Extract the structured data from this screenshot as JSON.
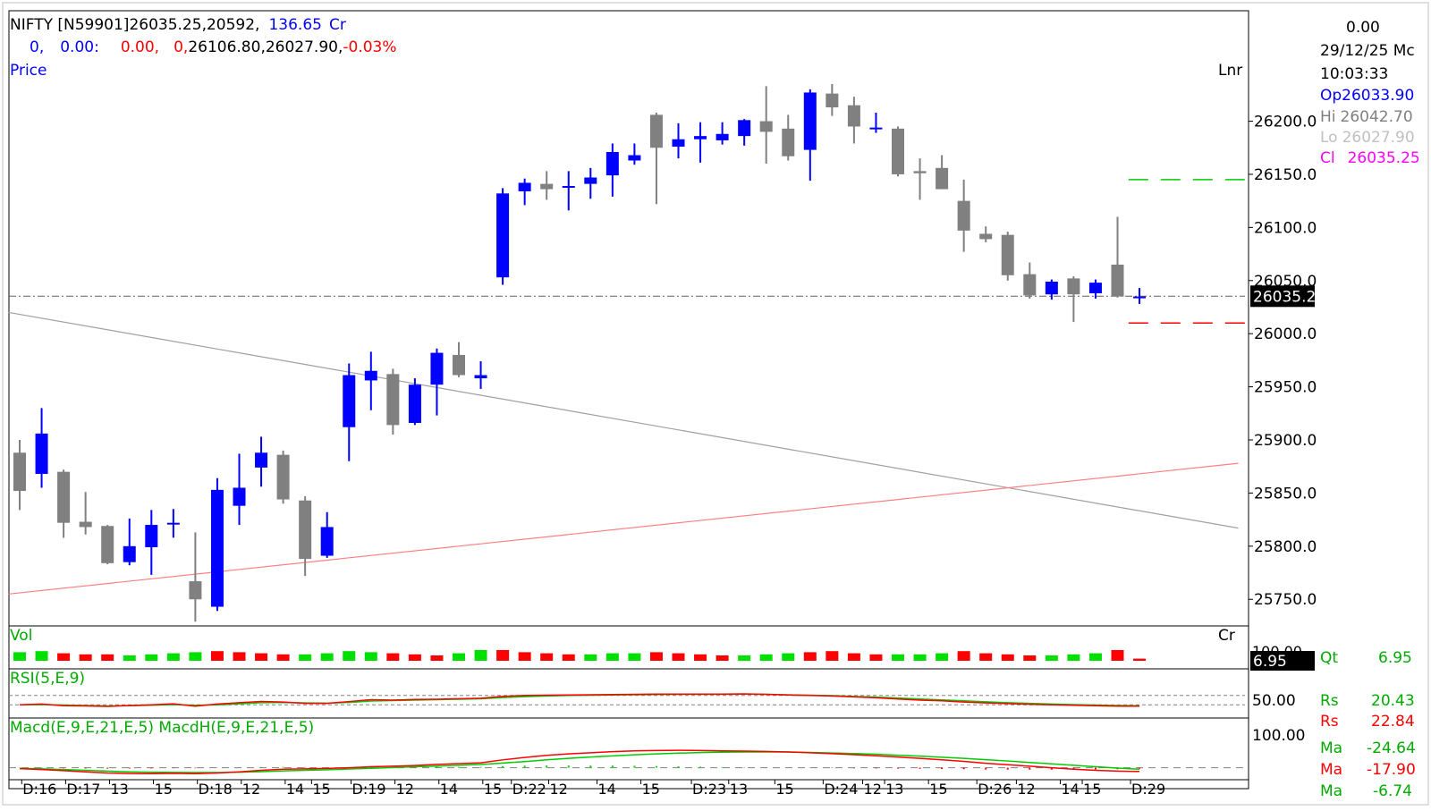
{
  "header": {
    "symbol": "NIFTY [N59901]",
    "price_volume": "26035.25,20592,",
    "turnover_value": "136.65",
    "turnover_unit": "Cr",
    "row2_a": "0,",
    "row2_b": "0.00:",
    "row2_c": "0.00,",
    "row2_d": "0,",
    "row2_e": "26106.80,26027.90,",
    "row2_change": "-0.03%",
    "pane_label": "Price",
    "scale_mode": "Lnr"
  },
  "info_panel": {
    "top_value": "0.00",
    "date": "29/12/25 Mc",
    "time": "10:03:33",
    "op_label": "Op",
    "op_value": "26033.90",
    "hi_label": "Hi",
    "hi_value": "26042.70",
    "lo_label": "Lo",
    "lo_value": "26027.90",
    "cl_label": "Cl",
    "cl_value": "26035.25",
    "qt_label": "Qt",
    "qt_value": "6.95",
    "rs1_label": "Rs",
    "rs1_value": "20.43",
    "rs2_label": "Rs",
    "rs2_value": "22.84",
    "ma1_label": "Ma",
    "ma1_value": "-24.64",
    "ma2_label": "Ma",
    "ma2_value": "-17.90",
    "ma3_label": "Ma",
    "ma3_value": "-6.74"
  },
  "panes": {
    "volume_label": "Vol",
    "volume_unit": "Cr",
    "volume_axis_partial": "100.00",
    "volume_current": "6.95",
    "rsi_label": "RSI(5,E,9)",
    "rsi_tick": "50.00",
    "macd_label": "Macd(E,9,E,21,E,5)  MacdH(E,9,E,21,E,5)",
    "macd_tick": "100.00"
  },
  "colors": {
    "up": "#0000ff",
    "down": "#808080",
    "vol_up": "#00e000",
    "vol_down": "#ff0000",
    "rsi": "#ff0000",
    "rsi_signal": "#00cc00",
    "macd": "#ff0000",
    "macd_signal": "#00cc00",
    "resistance_line": "#00cc00",
    "support_line": "#ff0000",
    "trend_up": "#ff8080",
    "trend_down": "#a0a0a0"
  },
  "chart_data": {
    "type": "candlestick",
    "interval": "hourly",
    "y_ticks": [
      "25750.0",
      "25800.0",
      "25850.0",
      "25900.0",
      "25950.0",
      "26000.0",
      "26050.0",
      "26100.0",
      "26150.0",
      "26200.0"
    ],
    "ylim": [
      25730,
      26240
    ],
    "current_price_label": "26035.2",
    "current_price": 26035.25,
    "resistance_level": 26145,
    "support_level": 26010,
    "trendline_falling": {
      "from": [
        -0.5,
        26020
      ],
      "to": [
        55.5,
        25817
      ]
    },
    "trendline_rising": {
      "from": [
        -0.5,
        25755
      ],
      "to": [
        55.5,
        25878
      ]
    },
    "x_tick_labels": [
      {
        "i": 0.5,
        "label": "D:16"
      },
      {
        "i": 2.5,
        "label": "D:17"
      },
      {
        "i": 4.5,
        "label": "13"
      },
      {
        "i": 6.5,
        "label": "15"
      },
      {
        "i": 8.5,
        "label": "D:18"
      },
      {
        "i": 10.5,
        "label": "12"
      },
      {
        "i": 12.5,
        "label": "14"
      },
      {
        "i": 13.7,
        "label": "15"
      },
      {
        "i": 15.5,
        "label": "D:19"
      },
      {
        "i": 17.5,
        "label": "12"
      },
      {
        "i": 19.5,
        "label": "14"
      },
      {
        "i": 21.5,
        "label": "15"
      },
      {
        "i": 22.8,
        "label": "D:22"
      },
      {
        "i": 24.5,
        "label": "12"
      },
      {
        "i": 26.7,
        "label": "14"
      },
      {
        "i": 28.7,
        "label": "15"
      },
      {
        "i": 31,
        "label": "D:23"
      },
      {
        "i": 32.7,
        "label": "13"
      },
      {
        "i": 34.8,
        "label": "15"
      },
      {
        "i": 37,
        "label": "D:24"
      },
      {
        "i": 38.8,
        "label": "12"
      },
      {
        "i": 39.8,
        "label": "13"
      },
      {
        "i": 41.8,
        "label": "15"
      },
      {
        "i": 44,
        "label": "D:26"
      },
      {
        "i": 45.8,
        "label": "12"
      },
      {
        "i": 47.8,
        "label": "14"
      },
      {
        "i": 48.8,
        "label": "15"
      },
      {
        "i": 51,
        "label": "D:29"
      }
    ],
    "candles": [
      {
        "o": 25888,
        "h": 25900,
        "l": 25834,
        "c": 25852
      },
      {
        "o": 25868,
        "h": 25930,
        "l": 25855,
        "c": 25906
      },
      {
        "o": 25870,
        "h": 25872,
        "l": 25808,
        "c": 25822
      },
      {
        "o": 25823,
        "h": 25851,
        "l": 25811,
        "c": 25818
      },
      {
        "o": 25819,
        "h": 25820,
        "l": 25783,
        "c": 25784
      },
      {
        "o": 25785,
        "h": 25826,
        "l": 25782,
        "c": 25800
      },
      {
        "o": 25799,
        "h": 25834,
        "l": 25773,
        "c": 25820
      },
      {
        "o": 25821,
        "h": 25835,
        "l": 25808,
        "c": 25822
      },
      {
        "o": 25767,
        "h": 25813,
        "l": 25729,
        "c": 25750
      },
      {
        "o": 25743,
        "h": 25864,
        "l": 25739,
        "c": 25853
      },
      {
        "o": 25838,
        "h": 25887,
        "l": 25820,
        "c": 25855
      },
      {
        "o": 25874,
        "h": 25903,
        "l": 25856,
        "c": 25888
      },
      {
        "o": 25886,
        "h": 25890,
        "l": 25840,
        "c": 25844
      },
      {
        "o": 25843,
        "h": 25847,
        "l": 25772,
        "c": 25788
      },
      {
        "o": 25791,
        "h": 25832,
        "l": 25789,
        "c": 25818
      },
      {
        "o": 25912,
        "h": 25972,
        "l": 25880,
        "c": 25961
      },
      {
        "o": 25956,
        "h": 25983,
        "l": 25928,
        "c": 25965
      },
      {
        "o": 25962,
        "h": 25967,
        "l": 25905,
        "c": 25914
      },
      {
        "o": 25916,
        "h": 25958,
        "l": 25914,
        "c": 25952
      },
      {
        "o": 25952,
        "h": 25986,
        "l": 25923,
        "c": 25982
      },
      {
        "o": 25980,
        "h": 25992,
        "l": 25959,
        "c": 25961
      },
      {
        "o": 25958,
        "h": 25974,
        "l": 25948,
        "c": 25961
      },
      {
        "o": 26053,
        "h": 26137,
        "l": 26046,
        "c": 26132
      },
      {
        "o": 26134,
        "h": 26146,
        "l": 26121,
        "c": 26142
      },
      {
        "o": 26141,
        "h": 26153,
        "l": 26126,
        "c": 26136
      },
      {
        "o": 26138,
        "h": 26153,
        "l": 26116,
        "c": 26139
      },
      {
        "o": 26141,
        "h": 26156,
        "l": 26127,
        "c": 26147
      },
      {
        "o": 26149,
        "h": 26179,
        "l": 26129,
        "c": 26171
      },
      {
        "o": 26163,
        "h": 26179,
        "l": 26159,
        "c": 26168
      },
      {
        "o": 26206,
        "h": 26208,
        "l": 26122,
        "c": 26175
      },
      {
        "o": 26176,
        "h": 26198,
        "l": 26165,
        "c": 26183
      },
      {
        "o": 26183,
        "h": 26199,
        "l": 26161,
        "c": 26186
      },
      {
        "o": 26182,
        "h": 26199,
        "l": 26178,
        "c": 26188
      },
      {
        "o": 26186,
        "h": 26202,
        "l": 26177,
        "c": 26201
      },
      {
        "o": 26200,
        "h": 26233,
        "l": 26160,
        "c": 26190
      },
      {
        "o": 26193,
        "h": 26206,
        "l": 26163,
        "c": 26167
      },
      {
        "o": 26173,
        "h": 26230,
        "l": 26144,
        "c": 26227
      },
      {
        "o": 26226,
        "h": 26235,
        "l": 26205,
        "c": 26213
      },
      {
        "o": 26215,
        "h": 26223,
        "l": 26179,
        "c": 26195
      },
      {
        "o": 26193,
        "h": 26208,
        "l": 26189,
        "c": 26194
      },
      {
        "o": 26193,
        "h": 26195,
        "l": 26148,
        "c": 26150
      },
      {
        "o": 26153,
        "h": 26165,
        "l": 26126,
        "c": 26151
      },
      {
        "o": 26156,
        "h": 26168,
        "l": 26136,
        "c": 26136
      },
      {
        "o": 26125,
        "h": 26145,
        "l": 26077,
        "c": 26097
      },
      {
        "o": 26094,
        "h": 26101,
        "l": 26086,
        "c": 26089
      },
      {
        "o": 26093,
        "h": 26096,
        "l": 26050,
        "c": 26055
      },
      {
        "o": 26056,
        "h": 26067,
        "l": 26033,
        "c": 26036
      },
      {
        "o": 26037,
        "h": 26051,
        "l": 26032,
        "c": 26049
      },
      {
        "o": 26052,
        "h": 26054,
        "l": 26011,
        "c": 26037
      },
      {
        "o": 26038,
        "h": 26051,
        "l": 26033,
        "c": 26048
      },
      {
        "o": 26065,
        "h": 26110,
        "l": 26034,
        "c": 26035
      },
      {
        "o": 26034,
        "h": 26043,
        "l": 26028,
        "c": 26035
      }
    ],
    "volume": {
      "values": [
        8,
        9,
        7,
        6,
        6,
        5,
        6,
        7,
        8,
        9,
        8,
        7,
        6,
        6,
        7,
        9,
        8,
        7,
        6,
        5,
        7,
        10,
        10,
        8,
        7,
        6,
        6,
        7,
        7,
        8,
        7,
        6,
        5,
        5,
        6,
        7,
        8,
        9,
        7,
        6,
        6,
        6,
        7,
        9,
        7,
        6,
        5,
        5,
        6,
        7,
        10,
        2
      ],
      "up": [
        true,
        true,
        false,
        false,
        false,
        true,
        true,
        true,
        true,
        false,
        false,
        false,
        false,
        true,
        true,
        true,
        true,
        false,
        false,
        false,
        true,
        true,
        false,
        false,
        false,
        false,
        true,
        true,
        true,
        false,
        false,
        false,
        false,
        true,
        true,
        true,
        false,
        false,
        false,
        false,
        true,
        true,
        true,
        false,
        false,
        false,
        false,
        true,
        true,
        true,
        false,
        false
      ]
    },
    "rsi": {
      "ylim": [
        0,
        100
      ],
      "tick": 50,
      "values": [
        30,
        33,
        26,
        25,
        23,
        27,
        30,
        34,
        24,
        33,
        39,
        44,
        42,
        36,
        36,
        44,
        52,
        50,
        53,
        54,
        56,
        58,
        66,
        70,
        71,
        72,
        73,
        74,
        75,
        76,
        76,
        76,
        76,
        77,
        75,
        72,
        70,
        68,
        64,
        60,
        55,
        50,
        47,
        42,
        38,
        35,
        32,
        30,
        28,
        26,
        24,
        24
      ],
      "signal": [
        30,
        31,
        29,
        27,
        25,
        26,
        28,
        31,
        28,
        30,
        34,
        39,
        40,
        38,
        37,
        40,
        46,
        48,
        50,
        52,
        54,
        56,
        61,
        65,
        68,
        70,
        71,
        72,
        73,
        74,
        75,
        75,
        75,
        76,
        75,
        73,
        71,
        69,
        66,
        63,
        59,
        55,
        51,
        47,
        43,
        39,
        36,
        33,
        31,
        29,
        27,
        26
      ]
    },
    "macd": {
      "ylim": [
        -45,
        175
      ],
      "tick": 100,
      "values": [
        -5,
        -10,
        -16,
        -22,
        -28,
        -31,
        -32,
        -30,
        -32,
        -28,
        -22,
        -14,
        -8,
        -6,
        -4,
        0,
        5,
        8,
        12,
        18,
        22,
        26,
        42,
        55,
        66,
        74,
        80,
        86,
        90,
        92,
        93,
        92,
        90,
        89,
        87,
        84,
        80,
        75,
        70,
        64,
        57,
        50,
        42,
        34,
        24,
        16,
        8,
        0,
        -8,
        -14,
        -18,
        -20
      ],
      "signal": [
        -3,
        -6,
        -10,
        -14,
        -18,
        -22,
        -24,
        -25,
        -26,
        -26,
        -24,
        -21,
        -17,
        -14,
        -11,
        -7,
        -3,
        1,
        5,
        9,
        13,
        17,
        25,
        33,
        42,
        50,
        57,
        63,
        69,
        74,
        78,
        81,
        83,
        84,
        84,
        84,
        82,
        79,
        76,
        72,
        67,
        62,
        56,
        50,
        43,
        36,
        28,
        21,
        13,
        5,
        -2,
        -8
      ]
    }
  }
}
